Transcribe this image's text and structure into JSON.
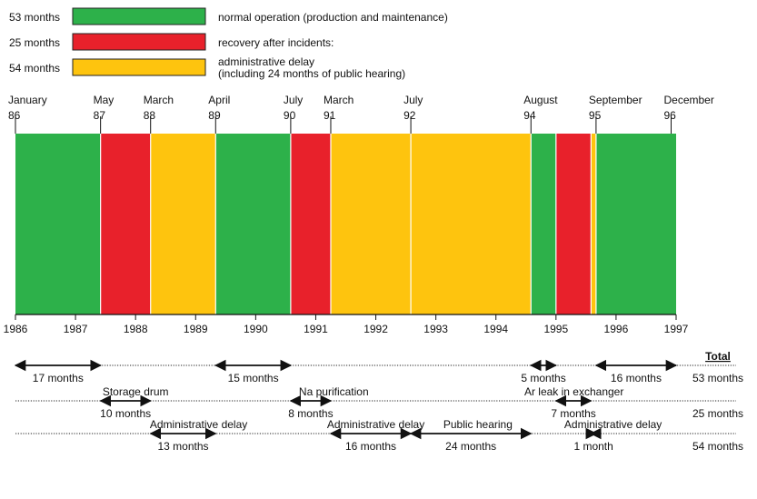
{
  "chart_data": {
    "type": "timeline",
    "legend": [
      {
        "count": "53 months",
        "category": "normal",
        "label": "normal operation (production and maintenance)"
      },
      {
        "count": "25 months",
        "category": "recovery",
        "label": "recovery after incidents:"
      },
      {
        "count": "54 months",
        "category": "admin",
        "label": "administrative delay",
        "label2": "(including 24 months of public hearing)"
      }
    ],
    "colors": {
      "normal": "#2db14a",
      "recovery": "#e8212b",
      "admin": "#fec40e"
    },
    "segments": [
      {
        "start": 1986.0,
        "end": 1987.417,
        "category": "normal"
      },
      {
        "start": 1987.417,
        "end": 1988.25,
        "category": "recovery"
      },
      {
        "start": 1988.25,
        "end": 1989.333,
        "category": "admin"
      },
      {
        "start": 1989.333,
        "end": 1990.583,
        "category": "normal"
      },
      {
        "start": 1990.583,
        "end": 1991.25,
        "category": "recovery"
      },
      {
        "start": 1991.25,
        "end": 1992.583,
        "category": "admin"
      },
      {
        "start": 1992.583,
        "end": 1994.583,
        "category": "admin"
      },
      {
        "start": 1994.583,
        "end": 1995.0,
        "category": "normal"
      },
      {
        "start": 1995.0,
        "end": 1995.583,
        "category": "recovery"
      },
      {
        "start": 1995.583,
        "end": 1995.667,
        "category": "admin"
      },
      {
        "start": 1995.667,
        "end": 1997.0,
        "category": "normal"
      }
    ],
    "top_markers": [
      {
        "x": 1986.0,
        "month": "January",
        "year": "86"
      },
      {
        "x": 1987.417,
        "month": "May",
        "year": "87"
      },
      {
        "x": 1988.25,
        "month": "March",
        "year": "88"
      },
      {
        "x": 1989.333,
        "month": "April",
        "year": "89"
      },
      {
        "x": 1990.583,
        "month": "July",
        "year": "90"
      },
      {
        "x": 1991.25,
        "month": "March",
        "year": "91"
      },
      {
        "x": 1992.583,
        "month": "July",
        "year": "92"
      },
      {
        "x": 1994.583,
        "month": "August",
        "year": "94"
      },
      {
        "x": 1995.667,
        "month": "September",
        "year": "95"
      },
      {
        "x": 1996.917,
        "month": "December",
        "year": "96"
      }
    ],
    "x_ticks": [
      "1986",
      "1987",
      "1988",
      "1989",
      "1990",
      "1991",
      "1992",
      "1993",
      "1994",
      "1995",
      "1996",
      "1997"
    ],
    "xlim": [
      1986,
      1997
    ],
    "total_header": "Total",
    "rows": [
      {
        "category": "normal",
        "total": "53 months",
        "arrows": [
          {
            "start": 1986.0,
            "end": 1987.417,
            "label": "17 months"
          },
          {
            "start": 1989.333,
            "end": 1990.583,
            "label": "15 months"
          },
          {
            "start": 1994.583,
            "end": 1995.0,
            "label": "5 months"
          },
          {
            "start": 1995.667,
            "end": 1997.0,
            "label": "16 months"
          }
        ],
        "titles": []
      },
      {
        "category": "recovery",
        "total": "25 months",
        "arrows": [
          {
            "start": 1987.417,
            "end": 1988.25,
            "label": "10 months"
          },
          {
            "start": 1990.583,
            "end": 1991.25,
            "label": "8 months"
          },
          {
            "start": 1995.0,
            "end": 1995.583,
            "label": "7 months"
          }
        ],
        "titles": [
          {
            "x": 1988.0,
            "text": "Storage drum"
          },
          {
            "x": 1991.3,
            "text": "Na purification"
          },
          {
            "x": 1995.3,
            "text": "Ar leak in exchanger"
          }
        ]
      },
      {
        "category": "admin",
        "total": "54 months",
        "arrows": [
          {
            "start": 1988.25,
            "end": 1989.333,
            "label": "13 months"
          },
          {
            "start": 1991.25,
            "end": 1992.583,
            "label": "16 months"
          },
          {
            "start": 1992.583,
            "end": 1994.583,
            "label": "24 months"
          },
          {
            "start": 1995.583,
            "end": 1995.667,
            "label": "1 month"
          }
        ],
        "titles": [
          {
            "x": 1989.05,
            "text": "Administrative delay"
          },
          {
            "x": 1992.0,
            "text": "Administrative delay"
          },
          {
            "x": 1993.7,
            "text": "Public hearing"
          },
          {
            "x": 1995.95,
            "text": "Administrative delay"
          }
        ]
      }
    ]
  }
}
